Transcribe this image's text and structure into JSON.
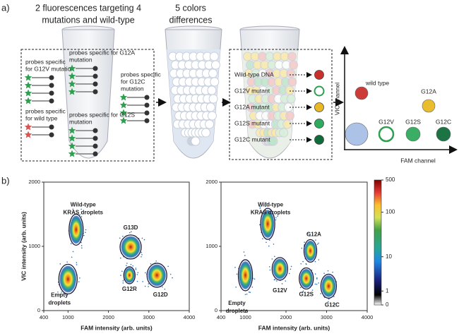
{
  "panel_a": {
    "label": "a)",
    "headings": [
      [
        "2 fluorescences targeting 4",
        "mutations and wild-type"
      ],
      [
        "5 colors",
        "differences"
      ]
    ],
    "probes": [
      [
        "probes specific",
        "for G12V mutation"
      ],
      [
        "probes specific for G12A",
        "mutation"
      ],
      [
        "probes specific",
        "for G12C",
        "mutation"
      ],
      [
        "probes specific",
        "for wild type"
      ],
      [
        "probes specific for G12S",
        "mutation"
      ]
    ],
    "droplets": [
      {
        "label": "Wild-type DNA",
        "color": "#c9302c"
      },
      {
        "label": "G12V mutant",
        "color": "#ffffff"
      },
      {
        "label": "G12A mutant",
        "color": "#e8b923"
      },
      {
        "label": "G12S mutant",
        "color": "#2eaa5c"
      },
      {
        "label": "G12C mutant",
        "color": "#106b3a"
      }
    ],
    "scheme": {
      "y_label": "VIC channel",
      "x_label": "FAM channel",
      "points": [
        {
          "label": "wild type",
          "color": "#c9302c"
        },
        {
          "label": "G12A",
          "color": "#e8b923"
        },
        {
          "label": null,
          "color": "#a9bfe6"
        },
        {
          "label": "G12V",
          "color": "#ffffff"
        },
        {
          "label": "G12S",
          "color": "#2eaa5c"
        },
        {
          "label": "G12C",
          "color": "#106b3a"
        }
      ]
    }
  },
  "panel_b": {
    "label": "b)",
    "colorbar": {
      "clim": [
        0,
        500
      ],
      "ticks": [
        0,
        1,
        10,
        100,
        500
      ],
      "log": true
    }
  },
  "chart_data": [
    {
      "type": "density",
      "x_label": "FAM intensity (arb. units)",
      "y_label": "VIC intensity (arb. units)",
      "xlim": [
        400,
        4000
      ],
      "ylim": [
        0,
        2000
      ],
      "xticks": [
        400,
        1000,
        2000,
        3000,
        4000
      ],
      "yticks": [
        0,
        1000,
        2000
      ],
      "clusters": [
        {
          "label": [
            "Empty",
            "droplets"
          ],
          "x": 1000,
          "y": 490
        },
        {
          "label": [
            "Wild-type",
            "KRAS droplets"
          ],
          "x": 1200,
          "y": 1260
        },
        {
          "label": [
            "G13D"
          ],
          "x": 2550,
          "y": 990
        },
        {
          "label": [
            "G12R"
          ],
          "x": 2520,
          "y": 550
        },
        {
          "label": [
            "G12D"
          ],
          "x": 3200,
          "y": 550
        }
      ]
    },
    {
      "type": "density",
      "x_label": "FAM intensity (arb. units)",
      "xlim": [
        400,
        4000
      ],
      "ylim": [
        0,
        2000
      ],
      "xticks": [
        400,
        1000,
        2000,
        3000,
        4000
      ],
      "yticks": [
        0,
        1000,
        2000
      ],
      "clusters": [
        {
          "label": [
            "Empty",
            "droplets"
          ],
          "x": 1000,
          "y": 550
        },
        {
          "label": [
            "Wild-type",
            "KRAS droplets"
          ],
          "x": 1550,
          "y": 1350
        },
        {
          "label": [
            "G12A"
          ],
          "x": 2600,
          "y": 930
        },
        {
          "label": [
            "G12V"
          ],
          "x": 1850,
          "y": 650
        },
        {
          "label": [
            "G12S"
          ],
          "x": 2500,
          "y": 500
        },
        {
          "label": [
            "G12C"
          ],
          "x": 3050,
          "y": 380
        }
      ]
    }
  ]
}
